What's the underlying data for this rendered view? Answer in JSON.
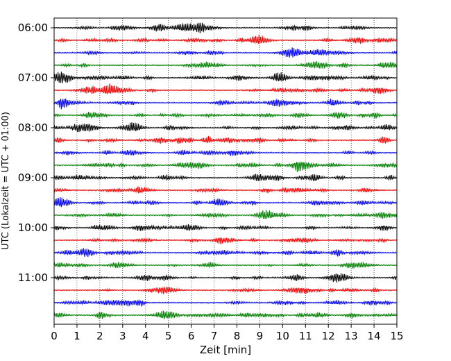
{
  "chart_data": {
    "type": "line",
    "title": "",
    "xlabel": "Zeit  [min]",
    "ylabel": "UTC (Lokalzeit = UTC + 01:00)",
    "xlim": [
      0,
      15
    ],
    "x_ticks": [
      0,
      1,
      2,
      3,
      4,
      5,
      6,
      7,
      8,
      9,
      10,
      11,
      12,
      13,
      14,
      15
    ],
    "x_tick_labels": [
      "0",
      "1",
      "2",
      "3",
      "4",
      "5",
      "6",
      "7",
      "8",
      "9",
      "10",
      "11",
      "12",
      "13",
      "14",
      "15"
    ],
    "y_tick_labels": [
      "06:00",
      "07:00",
      "08:00",
      "09:00",
      "10:00",
      "11:00"
    ],
    "traces_per_hour": 4,
    "trace_count": 24,
    "trace_start_times": [
      "06:00",
      "06:15",
      "06:30",
      "06:45",
      "07:00",
      "07:15",
      "07:30",
      "07:45",
      "08:00",
      "08:15",
      "08:30",
      "08:45",
      "09:00",
      "09:15",
      "09:30",
      "09:45",
      "10:00",
      "10:15",
      "10:30",
      "10:45",
      "11:00",
      "11:15",
      "11:30",
      "11:45"
    ],
    "trace_colors": [
      "#000000",
      "#ff0000",
      "#0000ff",
      "#008000"
    ],
    "grid": "vertical dotted lines at each minute",
    "legend": "none"
  }
}
